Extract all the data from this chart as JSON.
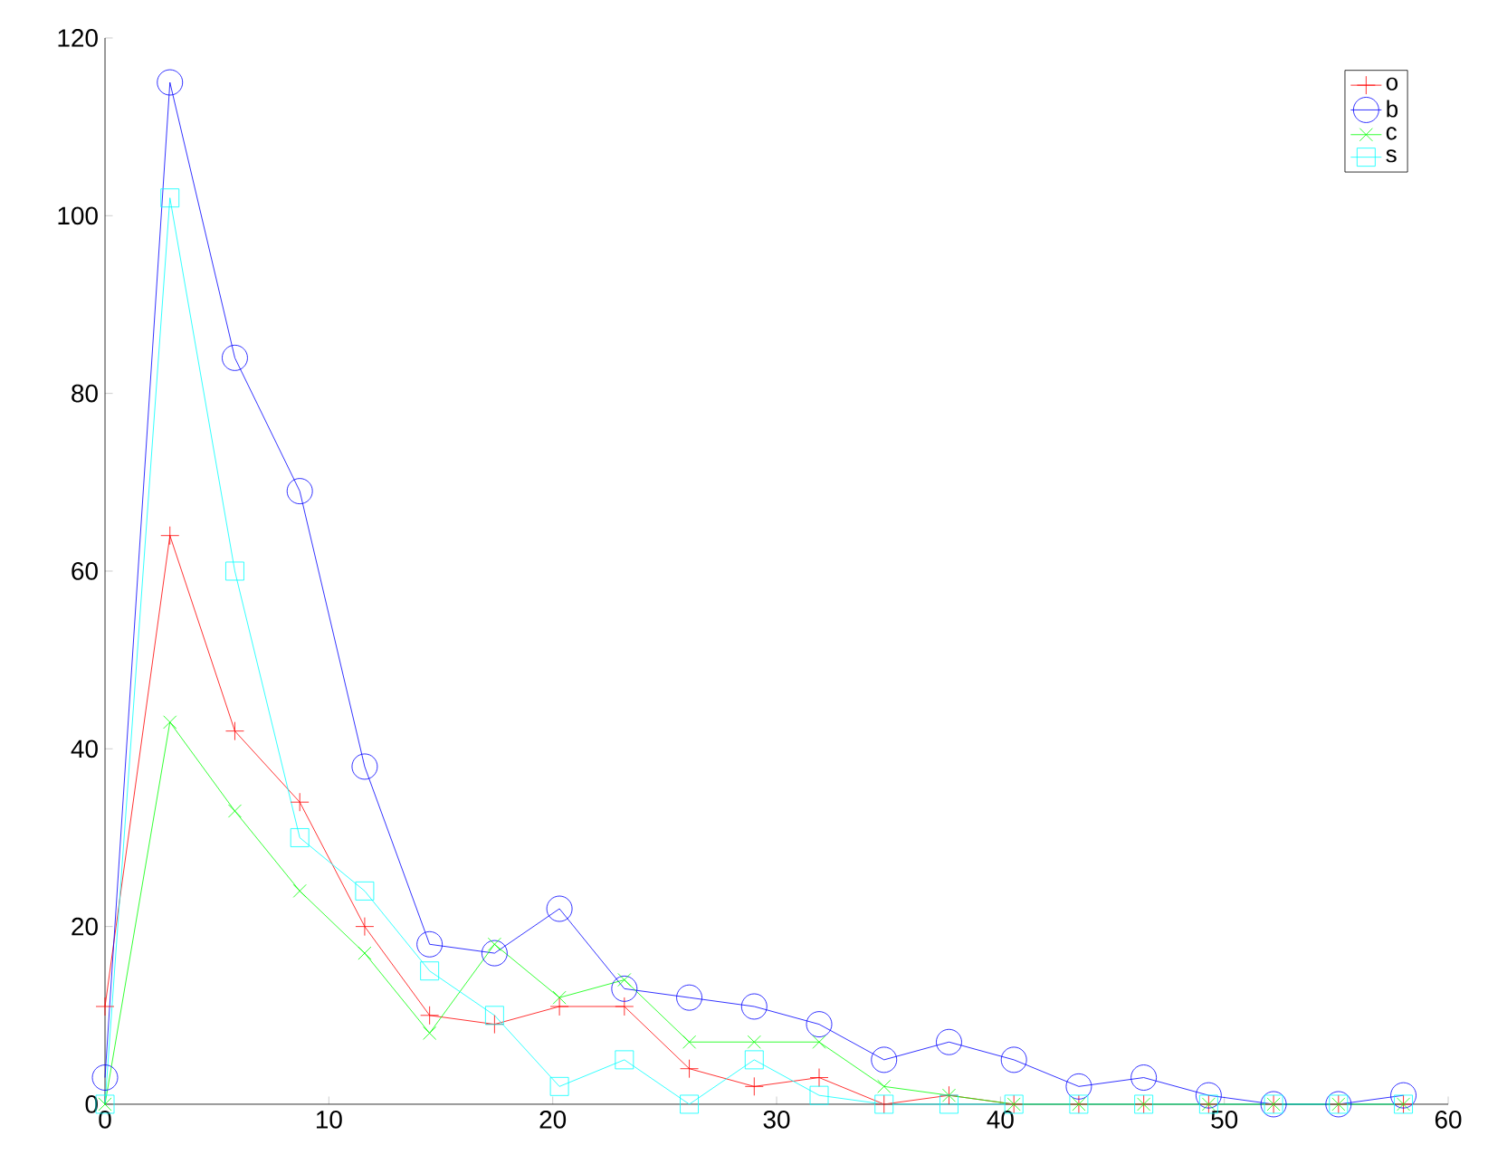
{
  "chart_data": {
    "type": "line",
    "x": [
      0,
      2.9,
      5.8,
      8.7,
      11.6,
      14.5,
      17.4,
      20.3,
      23.2,
      26.1,
      29,
      31.9,
      34.8,
      37.7,
      40.6,
      43.5,
      46.4,
      49.3,
      52.2,
      55.1,
      58
    ],
    "series": [
      {
        "name": "o",
        "color": "#ff0000",
        "marker": "plus",
        "values": [
          11,
          64,
          42,
          34,
          20,
          10,
          9,
          11,
          11,
          4,
          2,
          3,
          0,
          1,
          0,
          0,
          0,
          0,
          0,
          0,
          0
        ]
      },
      {
        "name": "b",
        "color": "#0000ff",
        "marker": "circle",
        "values": [
          3,
          115,
          84,
          69,
          38,
          18,
          17,
          22,
          13,
          12,
          11,
          9,
          5,
          7,
          5,
          2,
          3,
          1,
          0,
          0,
          1
        ]
      },
      {
        "name": "c",
        "color": "#00ff00",
        "marker": "cross",
        "values": [
          0,
          43,
          33,
          24,
          17,
          8,
          18,
          12,
          14,
          7,
          7,
          7,
          2,
          1,
          0,
          0,
          0,
          0,
          0,
          0,
          0
        ]
      },
      {
        "name": "s",
        "color": "#00ffff",
        "marker": "square",
        "values": [
          0,
          102,
          60,
          30,
          24,
          15,
          10,
          2,
          5,
          0,
          5,
          1,
          0,
          0,
          0,
          0,
          0,
          0,
          0,
          0,
          0
        ]
      }
    ],
    "xlim": [
      0,
      60
    ],
    "ylim": [
      0,
      120
    ],
    "xticks": [
      0,
      10,
      20,
      30,
      40,
      50,
      60
    ],
    "yticks": [
      0,
      20,
      40,
      60,
      80,
      100,
      120
    ],
    "grid": false,
    "legend": "top right",
    "line_style": "solid"
  }
}
